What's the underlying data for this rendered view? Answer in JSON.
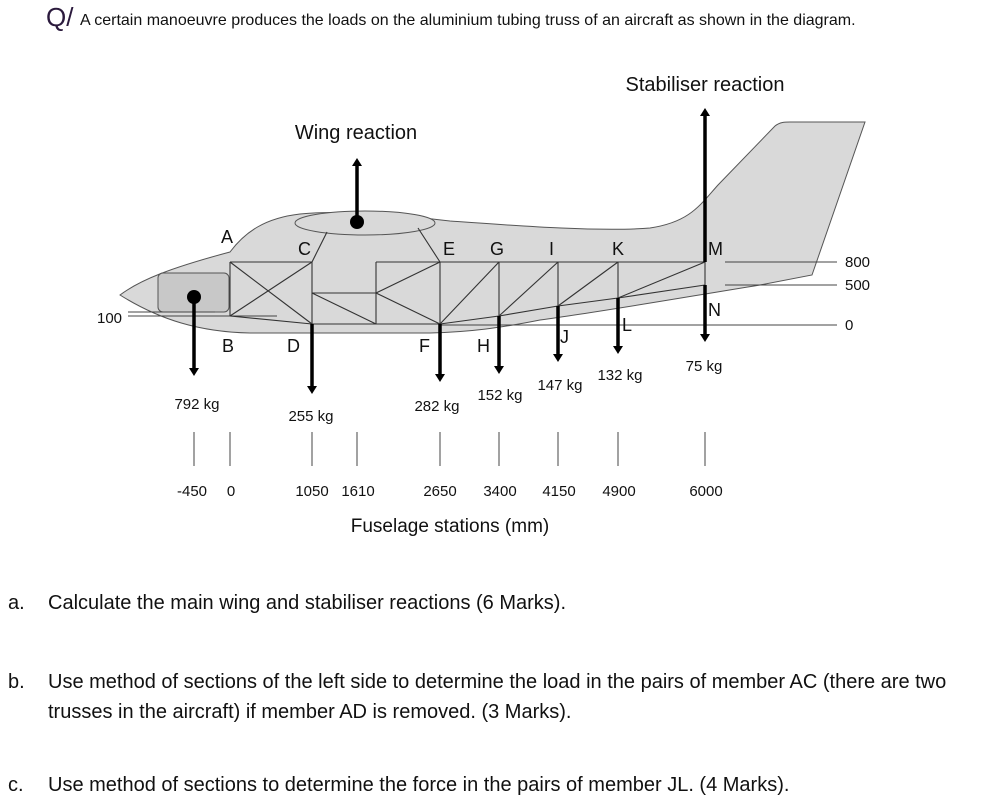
{
  "question": {
    "marker": "Q/",
    "text": "A certain manoeuvre produces the loads on the aluminium tubing truss of an aircraft as shown in the diagram."
  },
  "diagram": {
    "wing_reaction_label": "Wing reaction",
    "stabiliser_reaction_label": "Stabiliser reaction",
    "nodes": [
      "A",
      "B",
      "C",
      "D",
      "E",
      "F",
      "G",
      "H",
      "I",
      "J",
      "K",
      "L",
      "M",
      "N"
    ],
    "loads": [
      "792 kg",
      "255 kg",
      "282 kg",
      "152 kg",
      "147 kg",
      "132 kg",
      "75 kg"
    ],
    "heights": [
      "100",
      "800",
      "500",
      "0"
    ],
    "stations": [
      "-450",
      "0",
      "1050",
      "1610",
      "2650",
      "3400",
      "4150",
      "4900",
      "6000"
    ],
    "stations_label": "Fuselage stations (mm)",
    "fill_color": "#d9d9d9"
  },
  "parts": [
    {
      "label": "a.",
      "text": "Calculate the main wing and stabiliser reactions (6 Marks)."
    },
    {
      "label": "b.",
      "text": "Use method of sections of the left side to determine the load in the pairs of member AC (there are two trusses in the aircraft) if member AD is removed. (3 Marks)."
    },
    {
      "label": "c.",
      "text": "Use method of sections to determine the force in the pairs of member JL. (4 Marks)."
    }
  ]
}
